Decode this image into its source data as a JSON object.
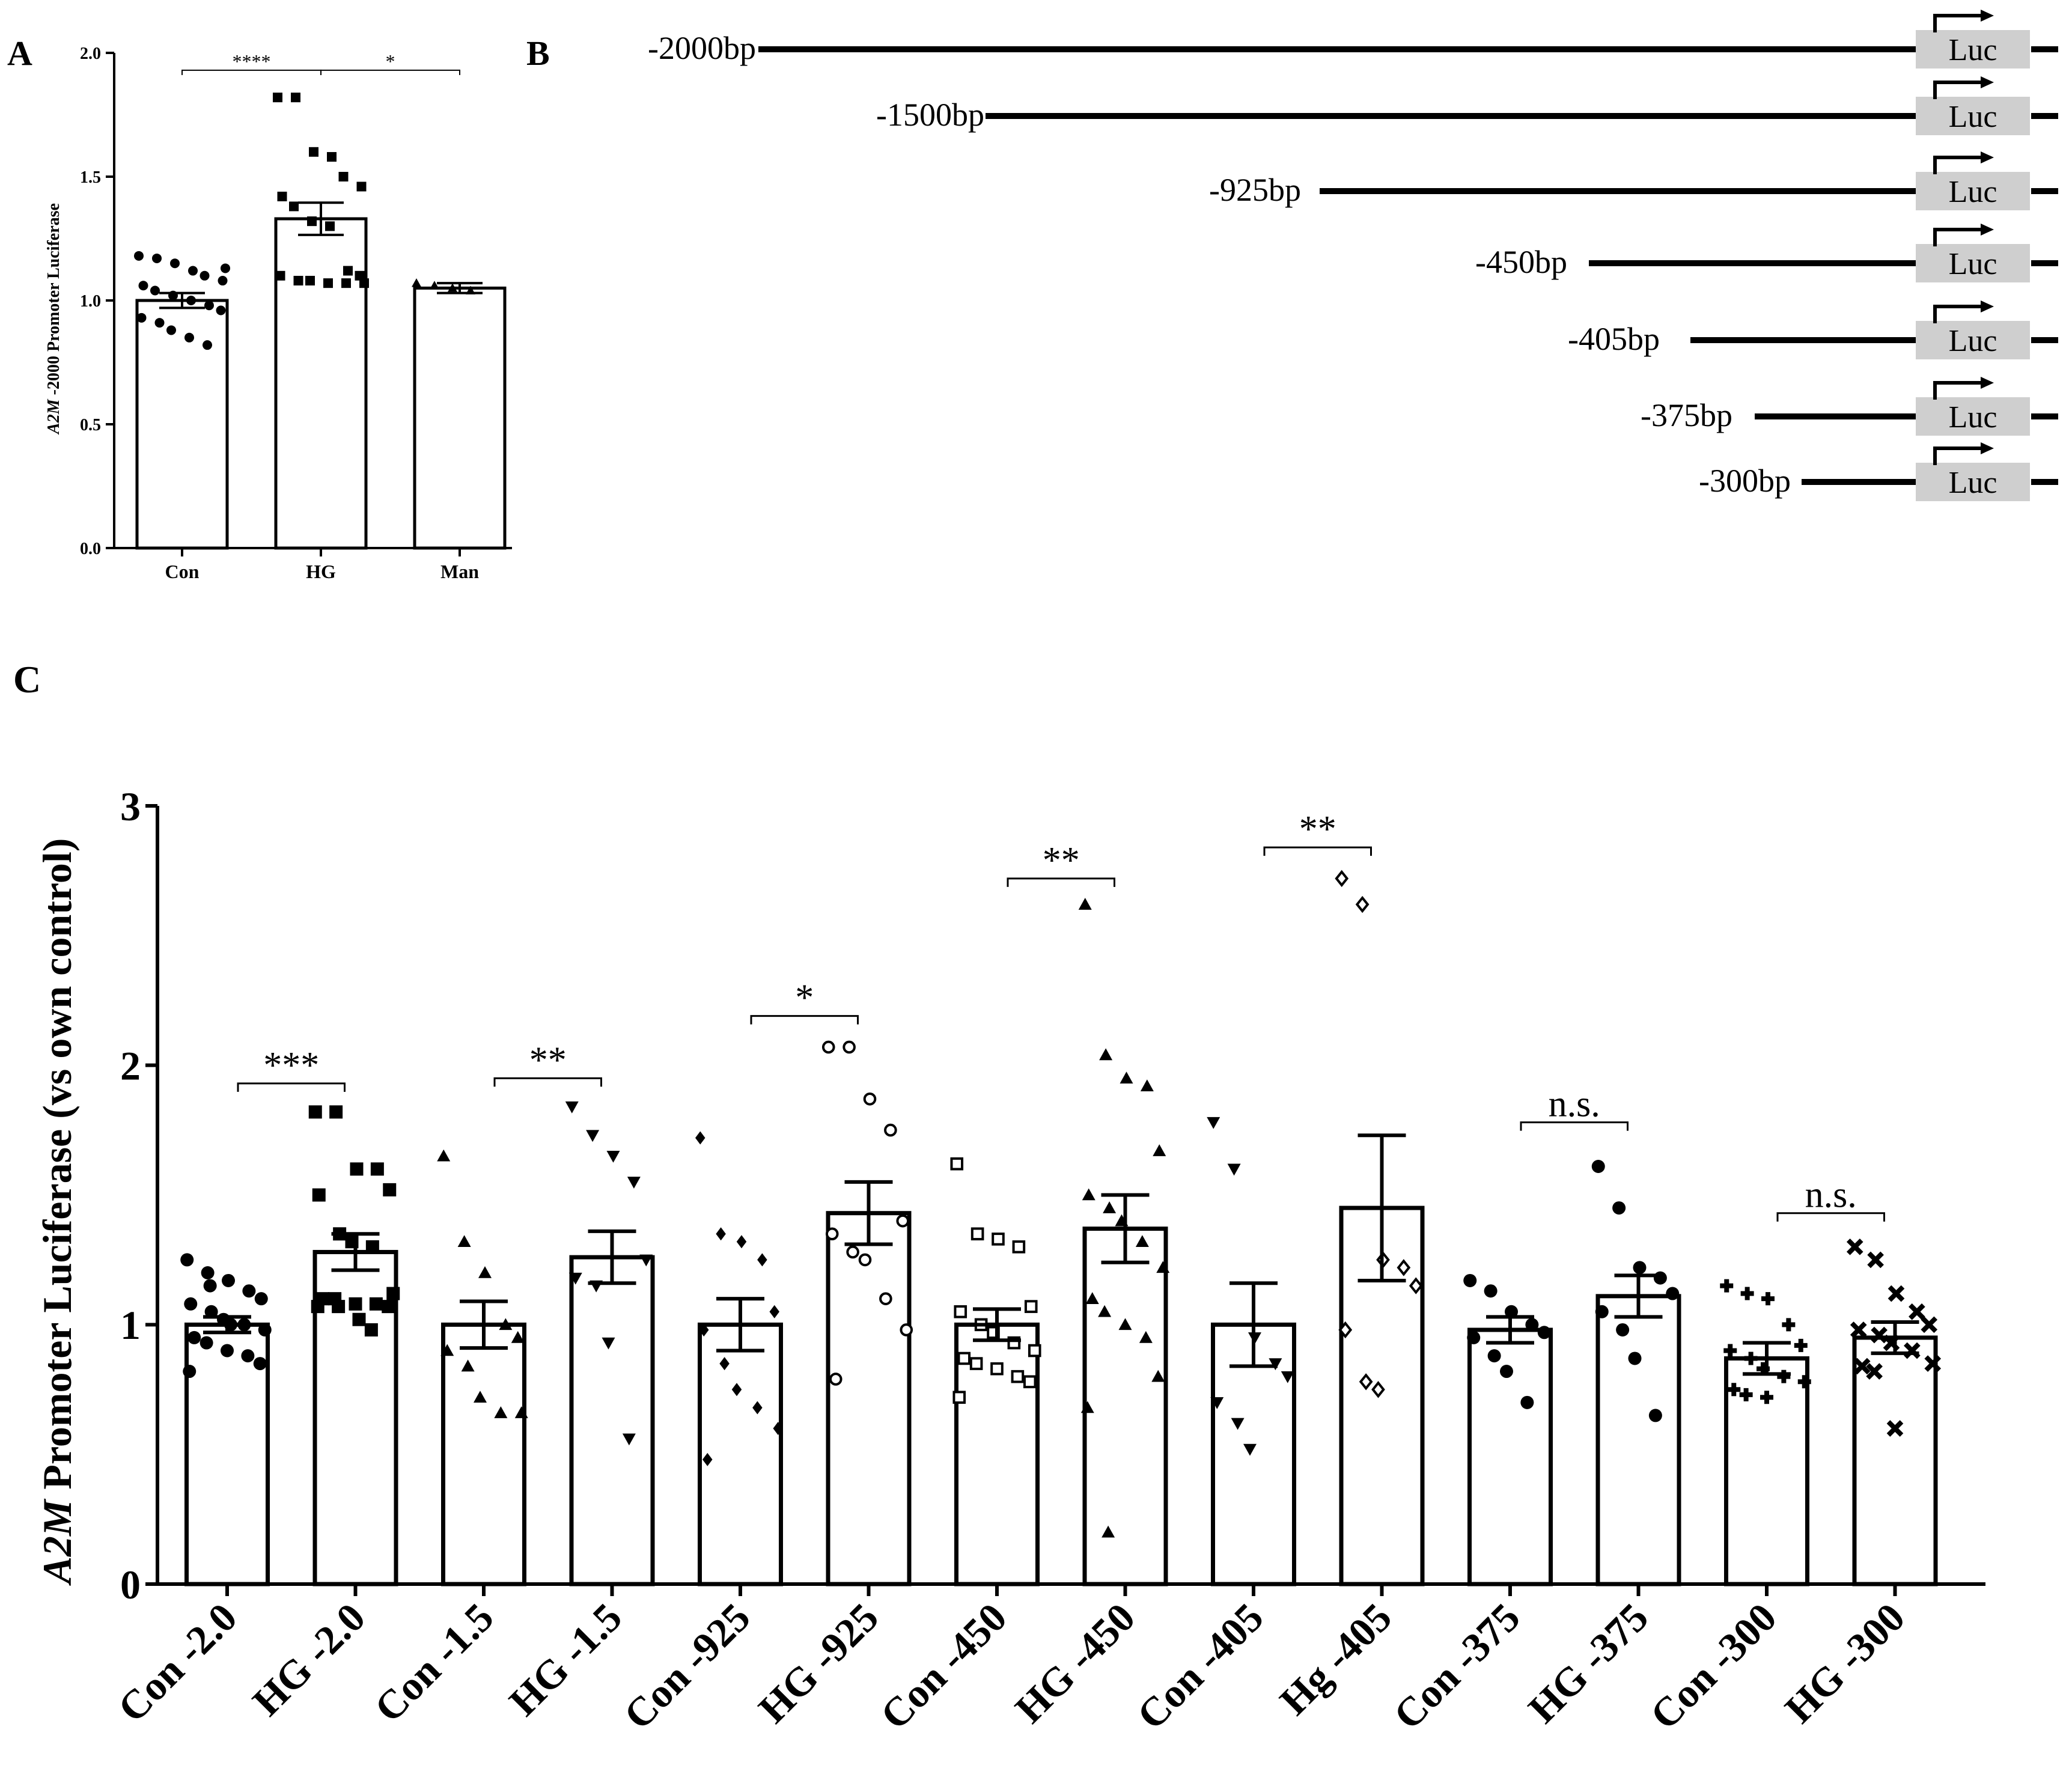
{
  "panels": {
    "A": {
      "label": "A"
    },
    "B": {
      "label": "B"
    },
    "C": {
      "label": "C"
    }
  },
  "chart_data": [
    {
      "panel": "A",
      "type": "bar",
      "title": "",
      "xlabel": "",
      "ylabel_italic": "A2M",
      "ylabel_rest": " -2000 Promoter Luciferase",
      "ylim": [
        0,
        2.0
      ],
      "yticks": [
        "0.0",
        "0.5",
        "1.0",
        "1.5",
        "2.0"
      ],
      "ytick_values": [
        0,
        0.5,
        1.0,
        1.5,
        2.0
      ],
      "categories": [
        "Con",
        "HG",
        "Man"
      ],
      "values": [
        1.0,
        1.33,
        1.05
      ],
      "sem": [
        0.03,
        0.065,
        0.02
      ],
      "markers": [
        "circle",
        "square",
        "triangle"
      ],
      "points": [
        [
          1.18,
          1.17,
          1.15,
          1.12,
          1.1,
          1.08,
          1.06,
          1.04,
          1.02,
          1.0,
          0.98,
          0.96,
          0.93,
          0.91,
          0.88,
          0.85,
          0.82,
          1.13
        ],
        [
          1.82,
          1.82,
          1.6,
          1.58,
          1.5,
          1.46,
          1.42,
          1.38,
          1.32,
          1.3,
          1.12,
          1.1,
          1.1,
          1.08,
          1.08,
          1.07,
          1.07,
          1.07
        ],
        [
          1.07,
          1.06,
          1.05,
          1.04
        ]
      ],
      "significance": [
        {
          "from": 0,
          "to": 1,
          "label": "****",
          "y": 1.93
        },
        {
          "from": 1,
          "to": 2,
          "label": "*",
          "y": 1.93
        }
      ]
    },
    {
      "panel": "C",
      "type": "bar",
      "title": "",
      "xlabel": "",
      "ylabel_italic": "A2M",
      "ylabel_rest": " Promoter Luciferase (vs own control)",
      "ylim": [
        0,
        3
      ],
      "yticks": [
        "0",
        "1",
        "2",
        "3"
      ],
      "ytick_values": [
        0,
        1,
        2,
        3
      ],
      "categories": [
        "Con -2.0",
        "HG -2.0",
        "Con -1.5",
        "HG -1.5",
        "Con -925",
        "HG -925",
        "Con -450",
        "HG -450",
        "Con -405",
        "Hg -405",
        "Con -375",
        "HG -375",
        "Con -300",
        "HG -300"
      ],
      "values": [
        1.0,
        1.28,
        1.0,
        1.26,
        1.0,
        1.43,
        1.0,
        1.37,
        1.0,
        1.45,
        0.98,
        1.11,
        0.87,
        0.95
      ],
      "sem": [
        0.03,
        0.07,
        0.09,
        0.1,
        0.1,
        0.12,
        0.06,
        0.13,
        0.16,
        0.28,
        0.05,
        0.08,
        0.06,
        0.06
      ],
      "markers": [
        "circle",
        "square",
        "triangle",
        "triangle-down",
        "diamond",
        "circle-open",
        "square-open",
        "triangle",
        "triangle-down",
        "diamond-open",
        "circle",
        "circle",
        "plus",
        "cross"
      ],
      "points": [
        [
          1.25,
          1.2,
          1.17,
          1.13,
          1.1,
          1.08,
          1.05,
          1.02,
          1.0,
          0.98,
          0.95,
          0.93,
          0.9,
          0.88,
          0.85,
          0.82,
          1.15,
          1.0
        ],
        [
          1.82,
          1.82,
          1.6,
          1.6,
          1.52,
          1.5,
          1.35,
          1.32,
          1.3,
          1.12,
          1.1,
          1.1,
          1.08,
          1.08,
          1.07,
          1.07,
          1.07,
          1.02,
          0.98
        ],
        [
          1.65,
          1.32,
          1.2,
          1.0,
          0.95,
          0.9,
          0.84,
          0.72,
          0.66,
          0.66
        ],
        [
          1.84,
          1.73,
          1.65,
          1.55,
          1.25,
          1.18,
          1.15,
          0.93,
          0.56
        ],
        [
          1.72,
          1.35,
          1.32,
          1.25,
          1.05,
          0.98,
          0.85,
          0.75,
          0.68,
          0.6,
          0.48
        ],
        [
          2.07,
          2.07,
          1.87,
          1.75,
          1.4,
          1.35,
          1.28,
          1.25,
          1.1,
          0.98,
          0.79
        ],
        [
          1.62,
          1.35,
          1.33,
          1.3,
          1.07,
          1.05,
          1.0,
          0.97,
          0.93,
          0.9,
          0.87,
          0.85,
          0.83,
          0.8,
          0.78,
          0.72
        ],
        [
          2.62,
          2.04,
          1.95,
          1.92,
          1.67,
          1.5,
          1.45,
          1.4,
          1.32,
          1.22,
          1.1,
          1.05,
          1.0,
          0.95,
          0.8,
          0.68,
          0.2
        ],
        [
          1.78,
          1.6,
          0.95,
          0.85,
          0.8,
          0.7,
          0.62,
          0.52
        ],
        [
          2.72,
          2.62,
          1.25,
          1.22,
          1.15,
          0.98,
          0.78,
          0.75
        ],
        [
          1.17,
          1.13,
          1.05,
          1.0,
          0.97,
          0.95,
          0.88,
          0.82,
          0.7
        ],
        [
          1.61,
          1.45,
          1.22,
          1.18,
          1.12,
          1.05,
          0.98,
          0.87,
          0.65
        ],
        [
          1.15,
          1.12,
          1.1,
          1.0,
          0.92,
          0.9,
          0.87,
          0.83,
          0.8,
          0.78,
          0.75,
          0.73,
          0.72
        ],
        [
          1.3,
          1.25,
          1.12,
          1.05,
          1.0,
          0.98,
          0.96,
          0.93,
          0.9,
          0.85,
          0.84,
          0.82,
          0.6
        ]
      ],
      "significance": [
        {
          "from": 0,
          "to": 1,
          "label": "***",
          "y": 1.93
        },
        {
          "from": 2,
          "to": 3,
          "label": "**",
          "y": 1.95
        },
        {
          "from": 4,
          "to": 5,
          "label": "*",
          "y": 2.19
        },
        {
          "from": 6,
          "to": 7,
          "label": "**",
          "y": 2.72
        },
        {
          "from": 8,
          "to": 9,
          "label": "**",
          "y": 2.84
        },
        {
          "from": 10,
          "to": 11,
          "label": "n.s.",
          "y": 1.78
        },
        {
          "from": 12,
          "to": 13,
          "label": "n.s.",
          "y": 1.43
        }
      ]
    }
  ],
  "constructs": {
    "luc_label": "Luc",
    "items": [
      {
        "label": "-2000bp"
      },
      {
        "label": "-1500bp"
      },
      {
        "label": "-925bp"
      },
      {
        "label": "-450bp"
      },
      {
        "label": "-405bp"
      },
      {
        "label": "-375bp"
      },
      {
        "label": "-300bp"
      }
    ]
  }
}
